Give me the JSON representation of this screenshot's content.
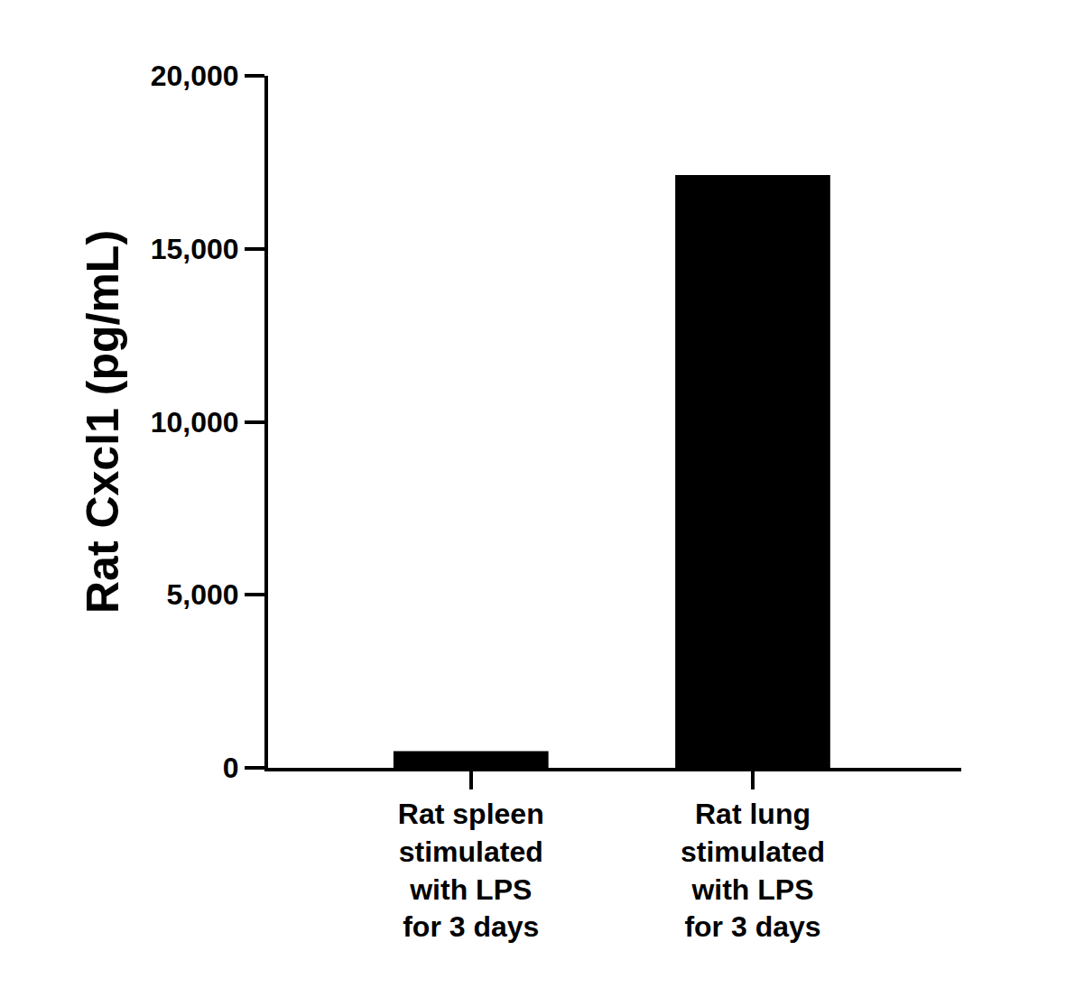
{
  "chart_data": {
    "type": "bar",
    "y_label": "Rat Cxcl1 (pg/mL)",
    "categories": [
      "Rat spleen stimulated with LPS for 3 days",
      "Rat lung stimulated with LPS for 3 days"
    ],
    "values": [
      480,
      17130
    ],
    "color": "#000000",
    "ylim": [
      0,
      20000
    ],
    "yticks": [
      0,
      {
        "value": 5000,
        "label": "5,000"
      },
      {
        "value": 10000,
        "label": "10,000"
      },
      {
        "value": 15000,
        "label": "15,000"
      },
      {
        "value": 20000,
        "label": "20,000"
      }
    ],
    "grid": false
  }
}
